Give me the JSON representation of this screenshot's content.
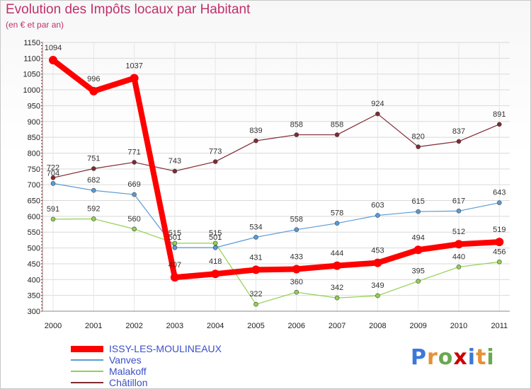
{
  "title": "Evolution des Impôts locaux par Habitant",
  "subtitle": "(en € et par an)",
  "chart_data": {
    "type": "line",
    "title": "Evolution des Impôts locaux par Habitant",
    "subtitle": "(en € et par an)",
    "xlabel": "",
    "ylabel": "",
    "categories": [
      "2000",
      "2001",
      "2002",
      "2003",
      "2004",
      "2005",
      "2006",
      "2007",
      "2008",
      "2009",
      "2010",
      "2011"
    ],
    "ylim": [
      300,
      1150
    ],
    "yticks": [
      300,
      350,
      400,
      450,
      500,
      550,
      600,
      650,
      700,
      750,
      800,
      850,
      900,
      950,
      1000,
      1050,
      1100,
      1150
    ],
    "grid": true,
    "series": [
      {
        "name": "ISSY-LES-MOULINEAUX",
        "color": "#ff0000",
        "values": [
          1094,
          996,
          1037,
          407,
          418,
          431,
          433,
          444,
          453,
          494,
          512,
          519
        ]
      },
      {
        "name": "Vanves",
        "color": "#5b9bd5",
        "values": [
          704,
          682,
          669,
          501,
          501,
          534,
          558,
          578,
          603,
          615,
          617,
          643
        ]
      },
      {
        "name": "Malakoff",
        "color": "#92d050",
        "values": [
          591,
          592,
          560,
          515,
          515,
          322,
          360,
          342,
          349,
          395,
          440,
          456
        ]
      },
      {
        "name": "Châtillon",
        "color": "#7f2a32",
        "values": [
          722,
          751,
          771,
          743,
          773,
          839,
          858,
          858,
          924,
          820,
          837,
          891
        ]
      }
    ]
  },
  "legend": {
    "items": [
      {
        "label": "ISSY-LES-MOULINEAUX",
        "color": "#ff0000"
      },
      {
        "label": "Vanves",
        "color": "#5b9bd5"
      },
      {
        "label": "Malakoff",
        "color": "#92d050"
      },
      {
        "label": "Châtillon",
        "color": "#7f2a32"
      }
    ]
  },
  "logo": {
    "letters": [
      "P",
      "r",
      "o",
      "x",
      "i",
      "t",
      "i"
    ],
    "colors": [
      "#3c78d8",
      "#e69138",
      "#6aa84f",
      "#cc0000",
      "#3c78d8",
      "#e69138",
      "#6aa84f"
    ]
  }
}
